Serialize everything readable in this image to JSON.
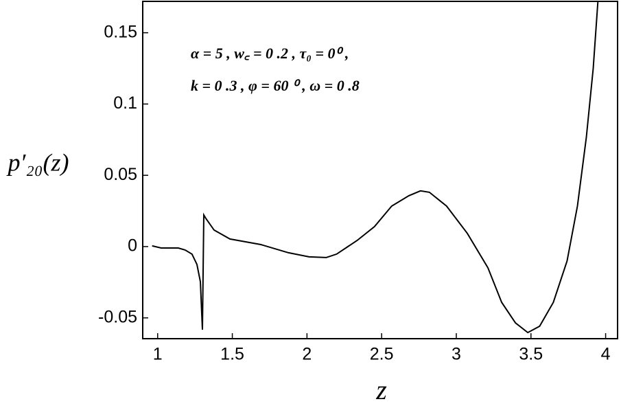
{
  "chart_data": {
    "type": "line",
    "xlabel": "z",
    "ylabel": "p′₂₀(z)",
    "annotations": [
      "α = 5 , w꜀ = 0 .2 , τ₀ = 0⁰ ,",
      "k = 0 .3 , φ = 60 ⁰ , ω = 0 .8"
    ],
    "x": [
      0.963,
      1.023,
      1.138,
      1.184,
      1.23,
      1.263,
      1.286,
      1.3,
      1.309,
      1.323,
      1.378,
      1.484,
      1.691,
      1.876,
      2.014,
      2.129,
      2.198,
      2.336,
      2.452,
      2.567,
      2.682,
      2.76,
      2.82,
      2.935,
      3.074,
      3.212,
      3.304,
      3.396,
      3.479,
      3.558,
      3.65,
      3.742,
      3.811,
      3.871,
      3.917,
      3.949
    ],
    "series": [
      {
        "color": "#000000",
        "values": [
          0.0005,
          -0.001,
          -0.001,
          -0.0024,
          -0.0053,
          -0.0125,
          -0.0246,
          -0.0583,
          0.0222,
          0.0198,
          0.0116,
          0.0053,
          0.0014,
          -0.0043,
          -0.0072,
          -0.0077,
          -0.0053,
          0.0043,
          0.014,
          0.0284,
          0.0357,
          0.0391,
          0.0381,
          0.0284,
          0.0092,
          -0.0149,
          -0.0391,
          -0.0535,
          -0.0603,
          -0.0559,
          -0.0391,
          -0.0101,
          0.0284,
          0.0767,
          0.1249,
          0.173
        ]
      }
    ],
    "xlim": [
      0.9,
      4.08
    ],
    "ylim": [
      -0.0646,
      0.172
    ],
    "xticks": [
      1,
      1.5,
      2,
      2.5,
      3,
      3.5,
      4
    ],
    "yticks": [
      -0.05,
      0,
      0.05,
      0.1,
      0.15
    ]
  }
}
